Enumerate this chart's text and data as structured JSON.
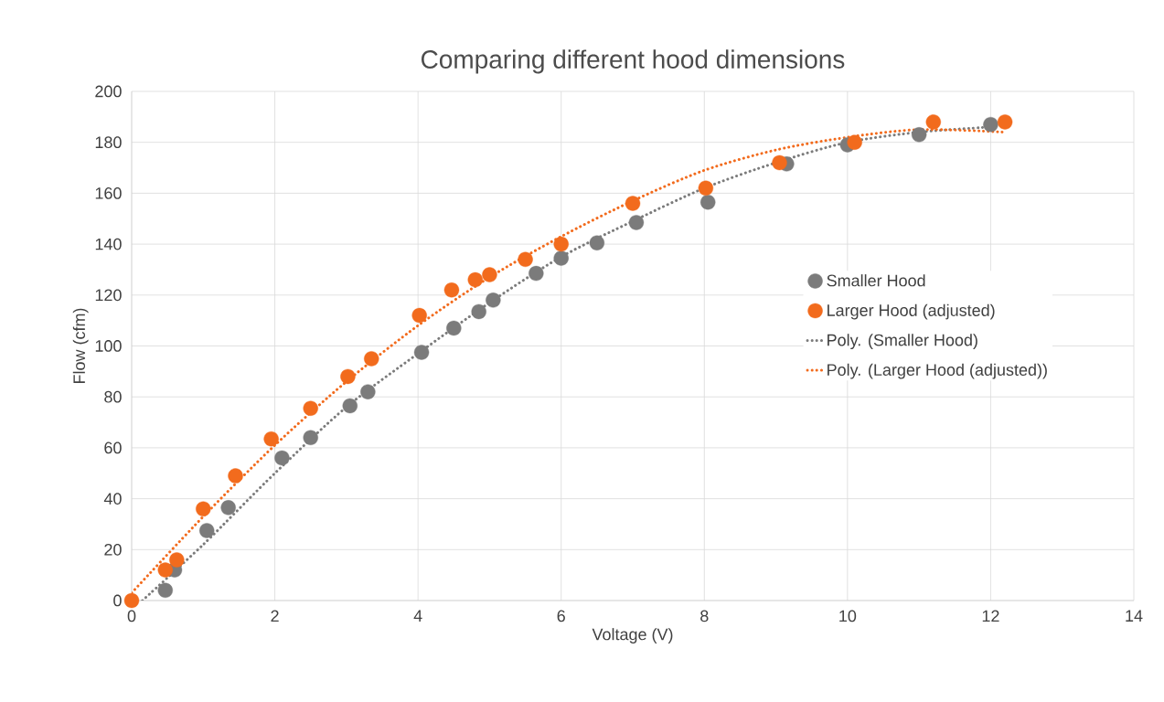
{
  "chart_data": {
    "type": "scatter",
    "title": "Comparing different hood dimensions",
    "xlabel": "Voltage (V)",
    "ylabel": "Flow (cfm)",
    "xlim": [
      0,
      14
    ],
    "ylim": [
      0,
      200
    ],
    "xticks": [
      0,
      2,
      4,
      6,
      8,
      10,
      12,
      14
    ],
    "yticks": [
      0,
      20,
      40,
      60,
      80,
      100,
      120,
      140,
      160,
      180,
      200
    ],
    "grid": true,
    "legend": "right",
    "marker": "circle",
    "series": [
      {
        "name": "Smaller Hood",
        "color": "#7b7b7b",
        "x": [
          0.47,
          0.6,
          1.05,
          1.35,
          2.1,
          2.5,
          3.05,
          3.3,
          4.05,
          4.5,
          4.85,
          5.05,
          5.65,
          6.0,
          6.5,
          7.05,
          8.05,
          9.15,
          10.0,
          11.0,
          12.0
        ],
        "values": [
          4,
          12,
          27.5,
          36.5,
          56,
          64,
          76.5,
          82,
          97.5,
          107,
          113.5,
          118,
          128.5,
          134.5,
          140.5,
          148.5,
          156.5,
          171.5,
          179,
          183,
          187
        ]
      },
      {
        "name": "Larger Hood (adjusted)",
        "color": "#f26b1d",
        "x": [
          0,
          0.47,
          0.63,
          1.0,
          1.45,
          1.95,
          2.5,
          3.02,
          3.35,
          4.02,
          4.47,
          4.8,
          5.0,
          5.5,
          6.0,
          7.0,
          8.02,
          9.05,
          10.1,
          11.2,
          12.2
        ],
        "values": [
          0,
          12,
          16,
          36,
          49,
          63.5,
          75.5,
          88,
          95,
          112,
          122,
          126,
          128,
          134,
          140,
          156,
          162,
          172,
          180,
          188,
          188
        ]
      },
      {
        "name": "Poly. (Smaller Hood)",
        "color": "#7b7b7b",
        "type": "line",
        "marker": "none",
        "line_style": "dotted",
        "x": [
          0.15,
          1,
          2,
          3,
          4,
          5,
          6,
          7,
          8,
          9,
          10,
          11,
          12
        ],
        "values": [
          0,
          22,
          50,
          76,
          97,
          117,
          135,
          149,
          162,
          172,
          180,
          184,
          186
        ]
      },
      {
        "name": "Poly. (Larger Hood (adjusted))",
        "color": "#f26b1d",
        "type": "line",
        "marker": "none",
        "line_style": "dotted",
        "x": [
          0,
          1,
          2,
          3,
          4,
          5,
          6,
          7,
          8,
          9,
          10,
          11,
          12.2
        ],
        "values": [
          3,
          33,
          61,
          86,
          108,
          127,
          143,
          157,
          169,
          177,
          182,
          185,
          184
        ]
      }
    ]
  }
}
